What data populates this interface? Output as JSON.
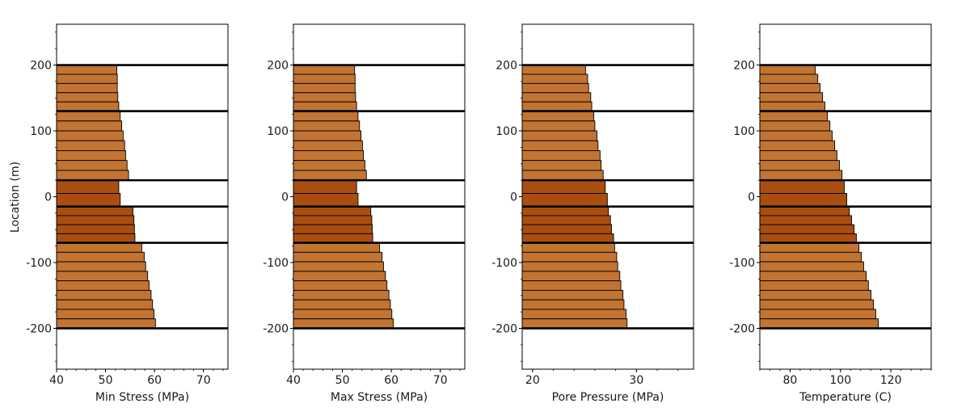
{
  "figure": {
    "ylabel": "Location (m)"
  },
  "colors": {
    "layer_light": "#c27432",
    "layer_dark": "#a94e10",
    "outline": "#000000"
  },
  "chart_data": [
    {
      "type": "bar",
      "orientation": "horizontal",
      "xlabel": "Min Stress (MPa)",
      "ylabel": "Location (m)",
      "xlim": [
        40,
        75
      ],
      "xticks": [
        40,
        50,
        60,
        70
      ],
      "ylim": [
        -262,
        262
      ],
      "yticks": [
        -200,
        -100,
        0,
        100,
        200
      ],
      "boundaries": [
        200,
        130,
        25,
        -15,
        -70,
        -200
      ],
      "segments": [
        {
          "top": 200,
          "bottom": 130,
          "color": "light",
          "values": [
            52.3,
            52.4,
            52.4,
            52.5,
            52.7
          ]
        },
        {
          "top": 130,
          "bottom": 25,
          "color": "light",
          "values": [
            53.0,
            53.3,
            53.6,
            53.9,
            54.1,
            54.4,
            54.7
          ]
        },
        {
          "top": 25,
          "bottom": -15,
          "color": "dark",
          "values": [
            52.7,
            53.0
          ]
        },
        {
          "top": -15,
          "bottom": -70,
          "color": "dark",
          "values": [
            55.6,
            55.8,
            55.9,
            56.0
          ]
        },
        {
          "top": -70,
          "bottom": -200,
          "color": "light",
          "values": [
            57.4,
            57.9,
            58.2,
            58.6,
            58.9,
            59.3,
            59.6,
            59.9,
            60.2
          ]
        }
      ]
    },
    {
      "type": "bar",
      "orientation": "horizontal",
      "xlabel": "Max Stress (MPa)",
      "ylabel": "Location (m)",
      "xlim": [
        40,
        75
      ],
      "xticks": [
        40,
        50,
        60,
        70
      ],
      "ylim": [
        -262,
        262
      ],
      "yticks": [
        -200,
        -100,
        0,
        100,
        200
      ],
      "boundaries": [
        200,
        130,
        25,
        -15,
        -70,
        -200
      ],
      "segments": [
        {
          "top": 200,
          "bottom": 130,
          "color": "light",
          "values": [
            52.5,
            52.6,
            52.6,
            52.7,
            52.9
          ]
        },
        {
          "top": 130,
          "bottom": 25,
          "color": "light",
          "values": [
            53.2,
            53.5,
            53.8,
            54.1,
            54.3,
            54.6,
            54.9
          ]
        },
        {
          "top": 25,
          "bottom": -15,
          "color": "dark",
          "values": [
            52.9,
            53.2
          ]
        },
        {
          "top": -15,
          "bottom": -70,
          "color": "dark",
          "values": [
            55.8,
            56.0,
            56.1,
            56.2
          ]
        },
        {
          "top": -70,
          "bottom": -200,
          "color": "light",
          "values": [
            57.6,
            58.1,
            58.4,
            58.8,
            59.1,
            59.5,
            59.8,
            60.1,
            60.4
          ]
        }
      ]
    },
    {
      "type": "bar",
      "orientation": "horizontal",
      "xlabel": "Pore Pressure (MPa)",
      "ylabel": "Location (m)",
      "xlim": [
        19,
        35.5
      ],
      "xticks": [
        20,
        30
      ],
      "ylim": [
        -262,
        262
      ],
      "yticks": [
        -200,
        -100,
        0,
        100,
        200
      ],
      "boundaries": [
        200,
        130,
        25,
        -15,
        -70,
        -200
      ],
      "segments": [
        {
          "top": 200,
          "bottom": 130,
          "color": "light",
          "values": [
            25.1,
            25.3,
            25.4,
            25.6,
            25.7
          ]
        },
        {
          "top": 130,
          "bottom": 25,
          "color": "light",
          "values": [
            25.9,
            26.0,
            26.2,
            26.3,
            26.5,
            26.6,
            26.8
          ]
        },
        {
          "top": 25,
          "bottom": -15,
          "color": "dark",
          "values": [
            27.0,
            27.2
          ]
        },
        {
          "top": -15,
          "bottom": -70,
          "color": "dark",
          "values": [
            27.3,
            27.5,
            27.6,
            27.8
          ]
        },
        {
          "top": -70,
          "bottom": -200,
          "color": "light",
          "values": [
            27.9,
            28.1,
            28.2,
            28.4,
            28.5,
            28.7,
            28.8,
            29.0,
            29.1
          ]
        }
      ]
    },
    {
      "type": "bar",
      "orientation": "horizontal",
      "xlabel": "Temperature (C)",
      "ylabel": "Location (m)",
      "xlim": [
        68,
        136
      ],
      "xticks": [
        80,
        100,
        120
      ],
      "ylim": [
        -262,
        262
      ],
      "yticks": [
        -200,
        -100,
        0,
        100,
        200
      ],
      "boundaries": [
        200,
        130,
        25,
        -15,
        -70,
        -200
      ],
      "segments": [
        {
          "top": 200,
          "bottom": 130,
          "color": "light",
          "values": [
            90.0,
            91.0,
            91.9,
            92.9,
            93.8
          ]
        },
        {
          "top": 130,
          "bottom": 25,
          "color": "light",
          "values": [
            94.8,
            95.8,
            96.7,
            97.7,
            98.6,
            99.6,
            100.6
          ]
        },
        {
          "top": 25,
          "bottom": -15,
          "color": "dark",
          "values": [
            101.5,
            102.5
          ]
        },
        {
          "top": -15,
          "bottom": -70,
          "color": "dark",
          "values": [
            103.5,
            104.4,
            105.4,
            106.3
          ]
        },
        {
          "top": -70,
          "bottom": -200,
          "color": "light",
          "values": [
            107.3,
            108.3,
            109.2,
            110.2,
            111.1,
            112.1,
            113.1,
            114.0,
            115.0
          ]
        }
      ]
    }
  ]
}
